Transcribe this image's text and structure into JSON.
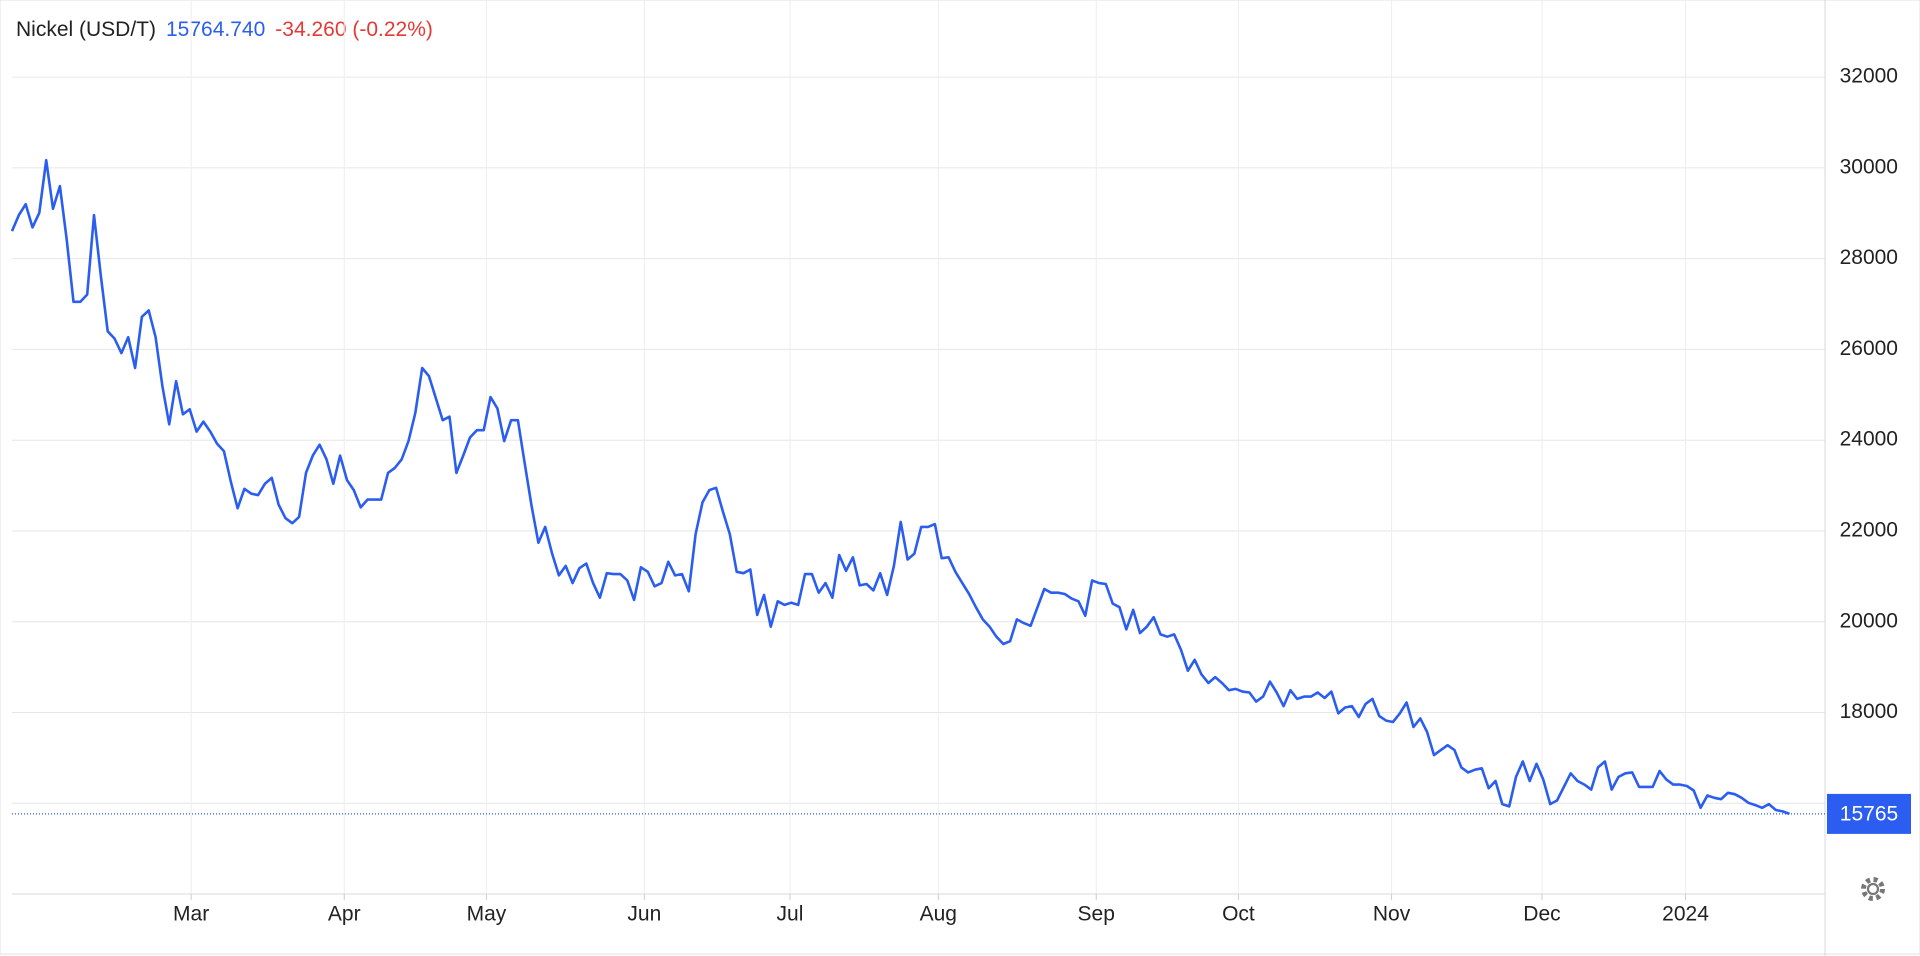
{
  "chart_data": {
    "type": "line",
    "title": "Nickel (USD/T)",
    "price": "15764.740",
    "change": "-34.260 (-0.22%)",
    "last_value": 15765,
    "series": [
      {
        "name": "Nickel",
        "color": "#2b5ef0",
        "values": [
          28608,
          28958,
          29200,
          28690,
          29010,
          30170,
          29100,
          29600,
          28420,
          27050,
          27050,
          27210,
          28960,
          27610,
          26400,
          26240,
          25920,
          26270,
          25590,
          26720,
          26860,
          26270,
          25190,
          24350,
          25300,
          24570,
          24680,
          24190,
          24410,
          24190,
          23920,
          23760,
          23090,
          22500,
          22930,
          22820,
          22790,
          23040,
          23170,
          22580,
          22280,
          22170,
          22310,
          23280,
          23660,
          23900,
          23580,
          23040,
          23660,
          23120,
          22900,
          22520,
          22690,
          22690,
          22690,
          23280,
          23390,
          23580,
          23980,
          24600,
          25590,
          25410,
          24920,
          24440,
          24520,
          23280,
          23660,
          24060,
          24220,
          24220,
          24950,
          24700,
          23980,
          24440,
          24440,
          23490,
          22550,
          21740,
          22090,
          21500,
          21020,
          21230,
          20850,
          21180,
          21280,
          20850,
          20530,
          21070,
          21050,
          21050,
          20910,
          20480,
          21200,
          21100,
          20780,
          20850,
          21320,
          21020,
          21050,
          20670,
          21930,
          22630,
          22900,
          22950,
          22420,
          21930,
          21100,
          21070,
          21150,
          20150,
          20590,
          19890,
          20450,
          20370,
          20420,
          20370,
          21050,
          21050,
          20640,
          20850,
          20530,
          21470,
          21120,
          21420,
          20800,
          20830,
          20690,
          21070,
          20590,
          21230,
          22200,
          21370,
          21500,
          22090,
          22090,
          22150,
          21400,
          21420,
          21100,
          20850,
          20610,
          20320,
          20050,
          19890,
          19670,
          19510,
          19570,
          20050,
          19970,
          19910,
          20320,
          20720,
          20640,
          20640,
          20610,
          20510,
          20450,
          20130,
          20910,
          20850,
          20830,
          20400,
          20320,
          19830,
          20260,
          19750,
          19890,
          20100,
          19720,
          19670,
          19720,
          19380,
          18920,
          19160,
          18840,
          18650,
          18780,
          18650,
          18490,
          18520,
          18460,
          18440,
          18240,
          18350,
          18680,
          18440,
          18140,
          18490,
          18300,
          18350,
          18350,
          18440,
          18320,
          18460,
          17980,
          18110,
          18140,
          17900,
          18190,
          18300,
          17920,
          17820,
          17790,
          17980,
          18220,
          17680,
          17870,
          17570,
          17060,
          17170,
          17280,
          17170,
          16790,
          16680,
          16740,
          16770,
          16330,
          16490,
          15980,
          15930,
          16580,
          16920,
          16490,
          16870,
          16520,
          15980,
          16060,
          16360,
          16660,
          16490,
          16410,
          16300,
          16790,
          16920,
          16300,
          16580,
          16660,
          16680,
          16360,
          16360,
          16360,
          16710,
          16520,
          16410,
          16410,
          16380,
          16280,
          15900,
          16170,
          16120,
          16090,
          16230,
          16200,
          16120,
          16010,
          15960,
          15900,
          15980,
          15850,
          15820,
          15765
        ]
      }
    ],
    "xlim": [
      0,
      265.2
    ],
    "xticks": [
      {
        "value": 26.2,
        "label": "Mar"
      },
      {
        "value": 48.6,
        "label": "Apr"
      },
      {
        "value": 69.4,
        "label": "May"
      },
      {
        "value": 92.5,
        "label": "Jun"
      },
      {
        "value": 113.8,
        "label": "Jul"
      },
      {
        "value": 135.5,
        "label": "Aug"
      },
      {
        "value": 158.6,
        "label": "Sep"
      },
      {
        "value": 179.4,
        "label": "Oct"
      },
      {
        "value": 201.8,
        "label": "Nov"
      },
      {
        "value": 223.8,
        "label": "Dec"
      },
      {
        "value": 244.8,
        "label": "2024"
      }
    ],
    "ylim": [
      14000,
      33700
    ],
    "yticks": [
      16000,
      18000,
      20000,
      22000,
      24000,
      26000,
      28000,
      30000,
      32000
    ],
    "grid": true
  }
}
